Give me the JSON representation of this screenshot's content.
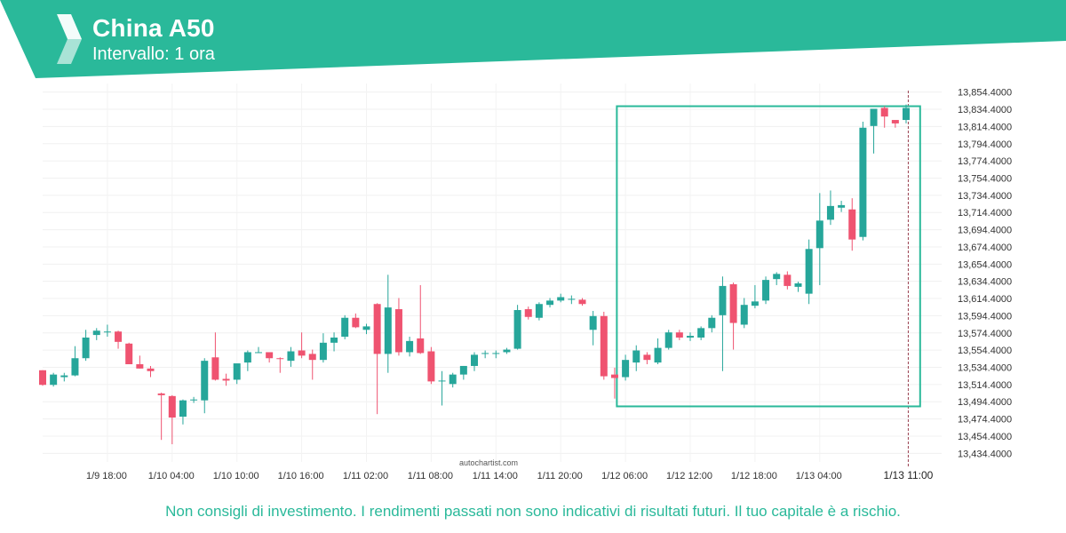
{
  "header": {
    "title": "China A50",
    "subtitle": "Intervallo: 1 ora",
    "color": "#2ab99a"
  },
  "watermark": "autochartist.com",
  "disclaimer": "Non consigli di investimento. I rendimenti passati non sono indicativi di risultati futuri. Il tuo capitale è a rischio.",
  "chart_data": {
    "type": "candlestick",
    "bull_color": "#26a69a",
    "bear_color": "#ef5370",
    "pattern_color": "#2ab99a",
    "ylim": [
      13424.4,
      13864.4
    ],
    "y_ticks": [
      "13,434.4000",
      "13,454.4000",
      "13,474.4000",
      "13,494.4000",
      "13,514.4000",
      "13,534.4000",
      "13,554.4000",
      "13,574.4000",
      "13,594.4000",
      "13,614.4000",
      "13,634.4000",
      "13,654.4000",
      "13,674.4000",
      "13,694.4000",
      "13,714.4000",
      "13,734.4000",
      "13,754.4000",
      "13,774.4000",
      "13,794.4000",
      "13,814.4000",
      "13,834.4000",
      "13,854.4000"
    ],
    "x_ticks": [
      {
        "label": "1/9 18:00",
        "index": 6
      },
      {
        "label": "1/10 04:00",
        "index": 12
      },
      {
        "label": "1/10 10:00",
        "index": 18
      },
      {
        "label": "1/10 16:00",
        "index": 24
      },
      {
        "label": "1/11 02:00",
        "index": 30
      },
      {
        "label": "1/11 08:00",
        "index": 36
      },
      {
        "label": "1/11 14:00",
        "index": 42
      },
      {
        "label": "1/11 20:00",
        "index": 48
      },
      {
        "label": "1/12 06:00",
        "index": 54
      },
      {
        "label": "1/12 12:00",
        "index": 60
      },
      {
        "label": "1/12 18:00",
        "index": 66
      },
      {
        "label": "1/13 04:00",
        "index": 72
      }
    ],
    "current_label": "1/13 11:00",
    "current_index": 80.2,
    "pattern_box": {
      "start_index": 53.2,
      "end_index": 81.3,
      "low": 13489,
      "high": 13838
    },
    "candles": [
      {
        "o": 13531,
        "h": 13531,
        "l": 13513,
        "c": 13514
      },
      {
        "o": 13514,
        "h": 13528,
        "l": 13512,
        "c": 13526
      },
      {
        "o": 13523,
        "h": 13528,
        "l": 13518,
        "c": 13525
      },
      {
        "o": 13525,
        "h": 13559,
        "l": 13524,
        "c": 13545
      },
      {
        "o": 13545,
        "h": 13578,
        "l": 13542,
        "c": 13569
      },
      {
        "o": 13572,
        "h": 13580,
        "l": 13566,
        "c": 13577
      },
      {
        "o": 13575,
        "h": 13584,
        "l": 13570,
        "c": 13576
      },
      {
        "o": 13576,
        "h": 13577,
        "l": 13556,
        "c": 13564
      },
      {
        "o": 13562,
        "h": 13563,
        "l": 13538,
        "c": 13538
      },
      {
        "o": 13538,
        "h": 13548,
        "l": 13533,
        "c": 13533
      },
      {
        "o": 13533,
        "h": 13536,
        "l": 13523,
        "c": 13530
      },
      {
        "o": 13504,
        "h": 13505,
        "l": 13450,
        "c": 13502
      },
      {
        "o": 13501,
        "h": 13502,
        "l": 13445,
        "c": 13476
      },
      {
        "o": 13477,
        "h": 13497,
        "l": 13468,
        "c": 13496
      },
      {
        "o": 13496,
        "h": 13500,
        "l": 13493,
        "c": 13497
      },
      {
        "o": 13496,
        "h": 13545,
        "l": 13481,
        "c": 13542
      },
      {
        "o": 13546,
        "h": 13575,
        "l": 13519,
        "c": 13520
      },
      {
        "o": 13521,
        "h": 13527,
        "l": 13513,
        "c": 13519
      },
      {
        "o": 13520,
        "h": 13536,
        "l": 13515,
        "c": 13539
      },
      {
        "o": 13540,
        "h": 13554,
        "l": 13530,
        "c": 13552
      },
      {
        "o": 13552,
        "h": 13558,
        "l": 13551,
        "c": 13552
      },
      {
        "o": 13552,
        "h": 13551,
        "l": 13540,
        "c": 13545
      },
      {
        "o": 13545,
        "h": 13546,
        "l": 13528,
        "c": 13544
      },
      {
        "o": 13542,
        "h": 13558,
        "l": 13535,
        "c": 13553
      },
      {
        "o": 13554,
        "h": 13575,
        "l": 13545,
        "c": 13548
      },
      {
        "o": 13550,
        "h": 13555,
        "l": 13520,
        "c": 13543
      },
      {
        "o": 13543,
        "h": 13574,
        "l": 13540,
        "c": 13563
      },
      {
        "o": 13563,
        "h": 13575,
        "l": 13553,
        "c": 13569
      },
      {
        "o": 13570,
        "h": 13595,
        "l": 13567,
        "c": 13592
      },
      {
        "o": 13592,
        "h": 13597,
        "l": 13580,
        "c": 13581
      },
      {
        "o": 13578,
        "h": 13585,
        "l": 13573,
        "c": 13582
      },
      {
        "o": 13608,
        "h": 13609,
        "l": 13480,
        "c": 13550
      },
      {
        "o": 13550,
        "h": 13642,
        "l": 13528,
        "c": 13604
      },
      {
        "o": 13602,
        "h": 13615,
        "l": 13548,
        "c": 13552
      },
      {
        "o": 13552,
        "h": 13570,
        "l": 13547,
        "c": 13565
      },
      {
        "o": 13568,
        "h": 13630,
        "l": 13550,
        "c": 13551
      },
      {
        "o": 13553,
        "h": 13558,
        "l": 13515,
        "c": 13518
      },
      {
        "o": 13518,
        "h": 13530,
        "l": 13490,
        "c": 13519
      },
      {
        "o": 13515,
        "h": 13528,
        "l": 13511,
        "c": 13526
      },
      {
        "o": 13526,
        "h": 13536,
        "l": 13520,
        "c": 13536
      },
      {
        "o": 13536,
        "h": 13552,
        "l": 13530,
        "c": 13549
      },
      {
        "o": 13551,
        "h": 13554,
        "l": 13545,
        "c": 13551
      },
      {
        "o": 13551,
        "h": 13554,
        "l": 13545,
        "c": 13551
      },
      {
        "o": 13552,
        "h": 13557,
        "l": 13550,
        "c": 13555
      },
      {
        "o": 13556,
        "h": 13607,
        "l": 13555,
        "c": 13601
      },
      {
        "o": 13602,
        "h": 13605,
        "l": 13590,
        "c": 13593
      },
      {
        "o": 13592,
        "h": 13610,
        "l": 13589,
        "c": 13608
      },
      {
        "o": 13607,
        "h": 13615,
        "l": 13604,
        "c": 13612
      },
      {
        "o": 13612,
        "h": 13620,
        "l": 13610,
        "c": 13616
      },
      {
        "o": 13614,
        "h": 13618,
        "l": 13608,
        "c": 13614
      },
      {
        "o": 13613,
        "h": 13615,
        "l": 13606,
        "c": 13608
      },
      {
        "o": 13578,
        "h": 13600,
        "l": 13560,
        "c": 13594
      },
      {
        "o": 13594,
        "h": 13599,
        "l": 13520,
        "c": 13524
      },
      {
        "o": 13526,
        "h": 13534,
        "l": 13498,
        "c": 13522
      },
      {
        "o": 13523,
        "h": 13549,
        "l": 13519,
        "c": 13543
      },
      {
        "o": 13540,
        "h": 13560,
        "l": 13530,
        "c": 13554
      },
      {
        "o": 13549,
        "h": 13552,
        "l": 13538,
        "c": 13543
      },
      {
        "o": 13540,
        "h": 13568,
        "l": 13538,
        "c": 13557
      },
      {
        "o": 13557,
        "h": 13578,
        "l": 13555,
        "c": 13575
      },
      {
        "o": 13575,
        "h": 13578,
        "l": 13566,
        "c": 13569
      },
      {
        "o": 13569,
        "h": 13575,
        "l": 13565,
        "c": 13571
      },
      {
        "o": 13569,
        "h": 13582,
        "l": 13566,
        "c": 13580
      },
      {
        "o": 13580,
        "h": 13595,
        "l": 13575,
        "c": 13592
      },
      {
        "o": 13595,
        "h": 13640,
        "l": 13530,
        "c": 13629
      },
      {
        "o": 13631,
        "h": 13633,
        "l": 13555,
        "c": 13586
      },
      {
        "o": 13584,
        "h": 13615,
        "l": 13580,
        "c": 13607
      },
      {
        "o": 13606,
        "h": 13630,
        "l": 13603,
        "c": 13611
      },
      {
        "o": 13612,
        "h": 13640,
        "l": 13608,
        "c": 13636
      },
      {
        "o": 13637,
        "h": 13645,
        "l": 13630,
        "c": 13643
      },
      {
        "o": 13642,
        "h": 13646,
        "l": 13625,
        "c": 13629
      },
      {
        "o": 13628,
        "h": 13634,
        "l": 13622,
        "c": 13632
      },
      {
        "o": 13620,
        "h": 13683,
        "l": 13608,
        "c": 13672
      },
      {
        "o": 13673,
        "h": 13737,
        "l": 13630,
        "c": 13705
      },
      {
        "o": 13706,
        "h": 13740,
        "l": 13700,
        "c": 13722
      },
      {
        "o": 13720,
        "h": 13728,
        "l": 13715,
        "c": 13723
      },
      {
        "o": 13718,
        "h": 13731,
        "l": 13670,
        "c": 13683
      },
      {
        "o": 13686,
        "h": 13820,
        "l": 13682,
        "c": 13813
      },
      {
        "o": 13815,
        "h": 13834,
        "l": 13783,
        "c": 13835
      },
      {
        "o": 13836,
        "h": 13838,
        "l": 13813,
        "c": 13826
      },
      {
        "o": 13822,
        "h": 13821,
        "l": 13813,
        "c": 13818
      },
      {
        "o": 13822,
        "h": 13840,
        "l": 13818,
        "c": 13836
      }
    ]
  }
}
